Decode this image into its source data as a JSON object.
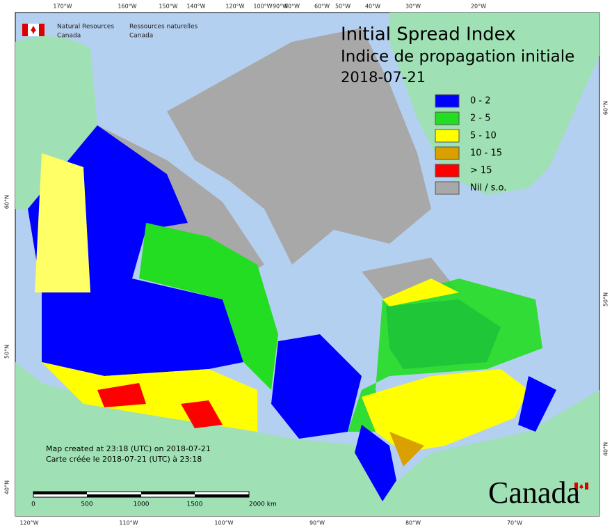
{
  "header": {
    "agency_en": [
      "Natural Resources",
      "Canada"
    ],
    "agency_fr": [
      "Ressources naturelles",
      "Canada"
    ]
  },
  "title": {
    "lines": [
      "Initial Spread Index",
      "Indice de propagation initiale",
      "2018-07-21"
    ]
  },
  "legend": {
    "items": [
      {
        "label": "0 - 2",
        "color": "#0000ff"
      },
      {
        "label": "2 - 5",
        "color": "#22dd22"
      },
      {
        "label": "5 - 10",
        "color": "#ffff00"
      },
      {
        "label": "10 - 15",
        "color": "#d9a000"
      },
      {
        "label": "> 15",
        "color": "#ff0000"
      },
      {
        "label": "Nil / s.o.",
        "color": "#a8a8a8"
      }
    ]
  },
  "graticule": {
    "top": [
      "170°W",
      "160°W",
      "150°W",
      "140°W",
      "120°W",
      "100°W",
      "90°W",
      "80°W",
      "60°W",
      "50°W",
      "40°W",
      "30°W",
      "20°W"
    ],
    "bottom": [
      "120°W",
      "110°W",
      "100°W",
      "90°W",
      "80°W",
      "70°W"
    ],
    "left": [
      "60°N",
      "50°N",
      "40°N"
    ],
    "right": [
      "60°N",
      "50°N",
      "40°N"
    ]
  },
  "note": [
    "Map created at 23:18 (UTC) on 2018-07-21",
    "Carte créée le 2018-07-21 (UTC) à 23:18"
  ],
  "scale": {
    "labels": [
      "0",
      "500",
      "1000",
      "1500",
      "2000 km"
    ]
  },
  "wordmark": "Canada"
}
